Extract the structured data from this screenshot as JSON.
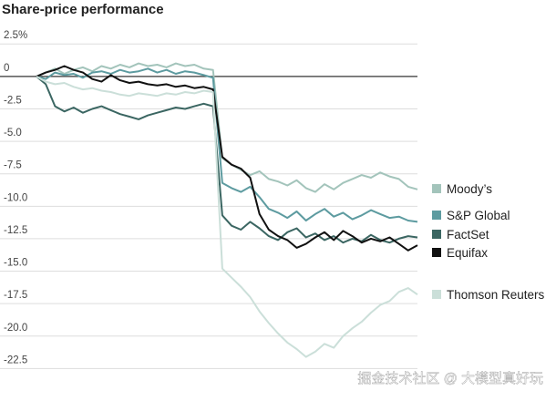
{
  "chart_data": {
    "type": "line",
    "title": "Share-price performance",
    "ylim": [
      -25,
      3.5
    ],
    "yticks": [
      {
        "value": 2.5,
        "label": "2.5%"
      },
      0,
      -2.5,
      {
        "value": -5,
        "label": "-5.0"
      },
      -7.5,
      {
        "value": -10,
        "label": "-10.0"
      },
      -12.5,
      {
        "value": -15,
        "label": "-15.0"
      },
      -17.5,
      {
        "value": -20,
        "label": "-20.0"
      },
      -22.5
    ],
    "grid": true,
    "legend": "right",
    "series": [
      {
        "name": "Moody’s",
        "color": "#a3c4bb",
        "values": [
          0,
          0.3,
          0.6,
          0.2,
          0.5,
          0.7,
          0.4,
          0.8,
          0.6,
          0.9,
          0.7,
          1.0,
          0.8,
          0.9,
          0.7,
          1.0,
          0.8,
          0.9,
          0.6,
          0.5,
          -6.3,
          -6.8,
          -7.2,
          -7.6,
          -7.3,
          -7.9,
          -8.1,
          -8.4,
          -8.0,
          -8.6,
          -8.9,
          -8.3,
          -8.7,
          -8.2,
          -7.9,
          -7.6,
          -7.8,
          -7.4,
          -7.7,
          -7.9,
          -8.5,
          -8.7
        ]
      },
      {
        "name": "S&P Global",
        "color": "#5d9ba0",
        "values": [
          0,
          -0.2,
          0.3,
          0.1,
          0.2,
          -0.1,
          0.3,
          0.4,
          0.2,
          0.5,
          0.3,
          0.4,
          0.6,
          0.3,
          0.5,
          0.2,
          0.4,
          0.3,
          0.1,
          -0.1,
          -8.2,
          -8.6,
          -8.9,
          -8.5,
          -9.3,
          -10.2,
          -10.5,
          -10.9,
          -10.4,
          -11.1,
          -10.6,
          -10.2,
          -10.8,
          -10.5,
          -11.0,
          -10.7,
          -10.3,
          -10.6,
          -10.9,
          -10.8,
          -11.1,
          -11.2
        ]
      },
      {
        "name": "FactSet",
        "color": "#3b6662",
        "values": [
          0,
          -0.6,
          -2.3,
          -2.7,
          -2.4,
          -2.8,
          -2.5,
          -2.3,
          -2.6,
          -2.9,
          -3.1,
          -3.3,
          -3.0,
          -2.8,
          -2.6,
          -2.4,
          -2.5,
          -2.3,
          -2.1,
          -2.3,
          -10.7,
          -11.5,
          -11.8,
          -11.2,
          -11.7,
          -12.3,
          -12.6,
          -12.0,
          -11.7,
          -12.4,
          -12.1,
          -12.6,
          -12.3,
          -12.8,
          -12.5,
          -12.7,
          -12.2,
          -12.6,
          -12.8,
          -12.5,
          -12.3,
          -12.4
        ]
      },
      {
        "name": "Equifax",
        "color": "#111111",
        "values": [
          0,
          0.3,
          0.5,
          0.8,
          0.5,
          0.3,
          -0.2,
          -0.4,
          0.1,
          -0.3,
          -0.5,
          -0.4,
          -0.6,
          -0.7,
          -0.6,
          -0.8,
          -0.7,
          -0.9,
          -0.8,
          -1.0,
          -6.2,
          -6.8,
          -7.1,
          -7.8,
          -10.6,
          -11.8,
          -12.3,
          -12.6,
          -13.2,
          -12.9,
          -12.4,
          -12.0,
          -12.6,
          -11.9,
          -12.3,
          -12.8,
          -12.5,
          -12.7,
          -12.4,
          -12.9,
          -13.4,
          -13.0
        ]
      },
      {
        "name": "Thomson Reuters",
        "color": "#cbdfd9",
        "values": [
          0,
          -0.4,
          -0.6,
          -0.5,
          -0.8,
          -1.0,
          -0.9,
          -1.1,
          -1.2,
          -1.4,
          -1.5,
          -1.3,
          -1.4,
          -1.5,
          -1.3,
          -1.4,
          -1.2,
          -1.3,
          -1.1,
          -1.2,
          -14.8,
          -15.5,
          -16.2,
          -17.0,
          -18.1,
          -19.0,
          -19.8,
          -20.5,
          -21.0,
          -21.6,
          -21.2,
          -20.6,
          -20.9,
          -20.0,
          -19.4,
          -18.9,
          -18.2,
          -17.6,
          -17.3,
          -16.6,
          -16.3,
          -16.8
        ]
      }
    ]
  },
  "watermark": "掘金技术社区 @ 大模型真好玩"
}
